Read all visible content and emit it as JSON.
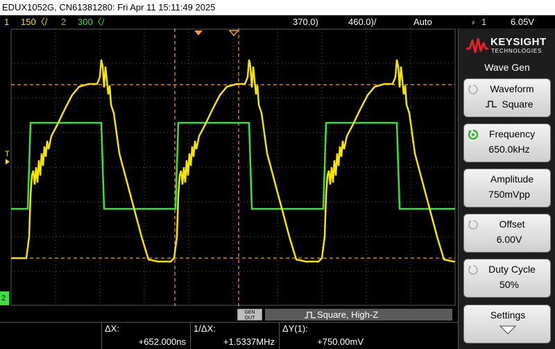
{
  "title_bar": {
    "text": "EDUX1052G, CN61381280: Fri Apr 11 15:11:49 2025"
  },
  "status": {
    "ch1_num": "1",
    "ch1_scale": "150〈/",
    "ch2_num": "2",
    "ch2_scale": "300〈/",
    "time_delay": "370.0)",
    "time_scale": "460.0)/",
    "trigger_mode": "Auto",
    "trigger_source": "1",
    "trigger_level": "6.05V"
  },
  "scope": {
    "trigger_marker": "T",
    "ch2_marker": "2",
    "colors": {
      "ch1": "#f5e400",
      "ch2": "#3ee03e",
      "cursor": "#ff9a2e",
      "grid": "#5a5a5a"
    }
  },
  "panel": {
    "brand": "KEYSIGHT",
    "brand_sub": "TECHNOLOGIES",
    "menu_title": "Wave Gen",
    "softkeys": [
      {
        "label": "Waveform",
        "value": "Square",
        "icon": "square-wave-icon"
      },
      {
        "label": "Frequency",
        "value": "650.0kHz",
        "icon": "entry-knob-icon"
      },
      {
        "label": "Amplitude",
        "value": "750mVpp",
        "icon": "knob-icon"
      },
      {
        "label": "Offset",
        "value": "6.00V",
        "icon": "knob-icon"
      },
      {
        "label": "Duty Cycle",
        "value": "50%",
        "icon": "knob-icon"
      },
      {
        "label": "Settings",
        "value": "",
        "icon": "down-arrow-icon"
      }
    ]
  },
  "bottom": {
    "gen_out_line1": "GEN",
    "gen_out_line2": "OUT",
    "wave_desc": "Square, High-Z",
    "measurements": [
      {
        "key": "ΔX:",
        "value": "+652.000ns"
      },
      {
        "key": "1/ΔX:",
        "value": "+1.5337MHz"
      },
      {
        "key": "ΔY(1):",
        "value": "+750.00mV"
      }
    ]
  }
}
